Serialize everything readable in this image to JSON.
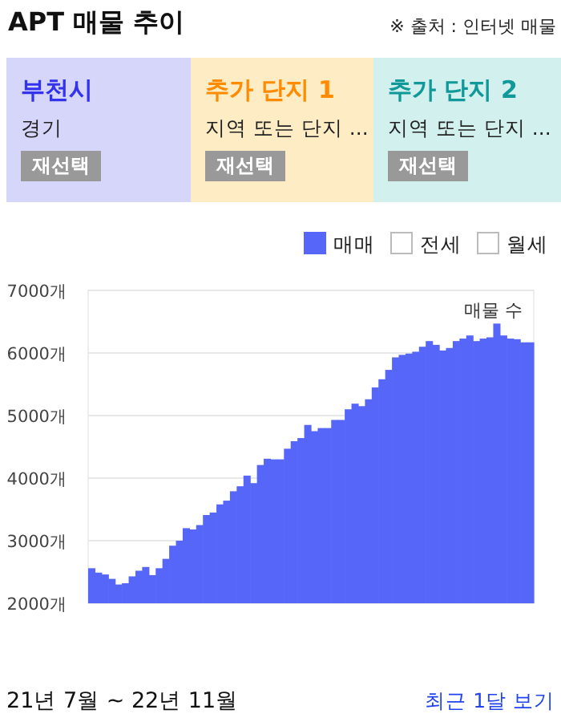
{
  "chart_data": [
    {
      "type": "other",
      "title": "APT 매물 추이",
      "annotations": [
        "※ 출처 : 인터넷 매물",
        "부천시",
        "경기",
        "재선택",
        "추가 단지 1",
        "지역 또는 단지 ...",
        "재선택",
        "추가 단지 2",
        "지역 또는 단지 ...",
        "재선택"
      ]
    },
    {
      "type": "bar",
      "categories": [
        null,
        null,
        null,
        null,
        null,
        null,
        null,
        null,
        null,
        null,
        null,
        null,
        null,
        null,
        null,
        null,
        null,
        null,
        null,
        null,
        null,
        null,
        null,
        null,
        null,
        null,
        null,
        null,
        null,
        null,
        null,
        null,
        null,
        null,
        null,
        null,
        null,
        null,
        null,
        null,
        null,
        null,
        null,
        null,
        null,
        null,
        null,
        null,
        null,
        null,
        null,
        null,
        null,
        null,
        null,
        null,
        null,
        null,
        null,
        null,
        null,
        null,
        null,
        null,
        null,
        null
      ],
      "series": [
        {
          "name": "매매",
          "color": "#5566f8",
          "values": [
            2560,
            2490,
            2460,
            2390,
            2300,
            2320,
            2430,
            2520,
            2580,
            2450,
            2560,
            2710,
            2920,
            3000,
            3200,
            3180,
            3250,
            3410,
            3450,
            3580,
            3640,
            3790,
            3870,
            4040,
            3920,
            4210,
            4310,
            4300,
            4300,
            4470,
            4590,
            4640,
            4850,
            4750,
            4800,
            4800,
            4930,
            4930,
            5100,
            5190,
            5150,
            5260,
            5450,
            5580,
            5730,
            5930,
            5970,
            5990,
            6020,
            6100,
            6190,
            6130,
            6040,
            6080,
            6190,
            6230,
            6280,
            6190,
            6230,
            6250,
            6470,
            6280,
            6230,
            6220,
            6170,
            6170
          ]
        }
      ],
      "ylim": [
        2000,
        7000
      ],
      "yticks": [
        {
          "value": 2000,
          "label": "2000개"
        },
        {
          "value": 3000,
          "label": "3000개"
        },
        {
          "value": 4000,
          "label": "4000개"
        },
        {
          "value": 5000,
          "label": "5000개"
        },
        {
          "value": 6000,
          "label": "6000개"
        },
        {
          "value": 7000,
          "label": "7000개"
        }
      ],
      "grid": "y",
      "legend": "top right",
      "annotations": [
        "매물 수",
        "전세",
        "월세",
        "21년 7월 ~ 22년 11월",
        "최근 1달 보기"
      ]
    }
  ]
}
